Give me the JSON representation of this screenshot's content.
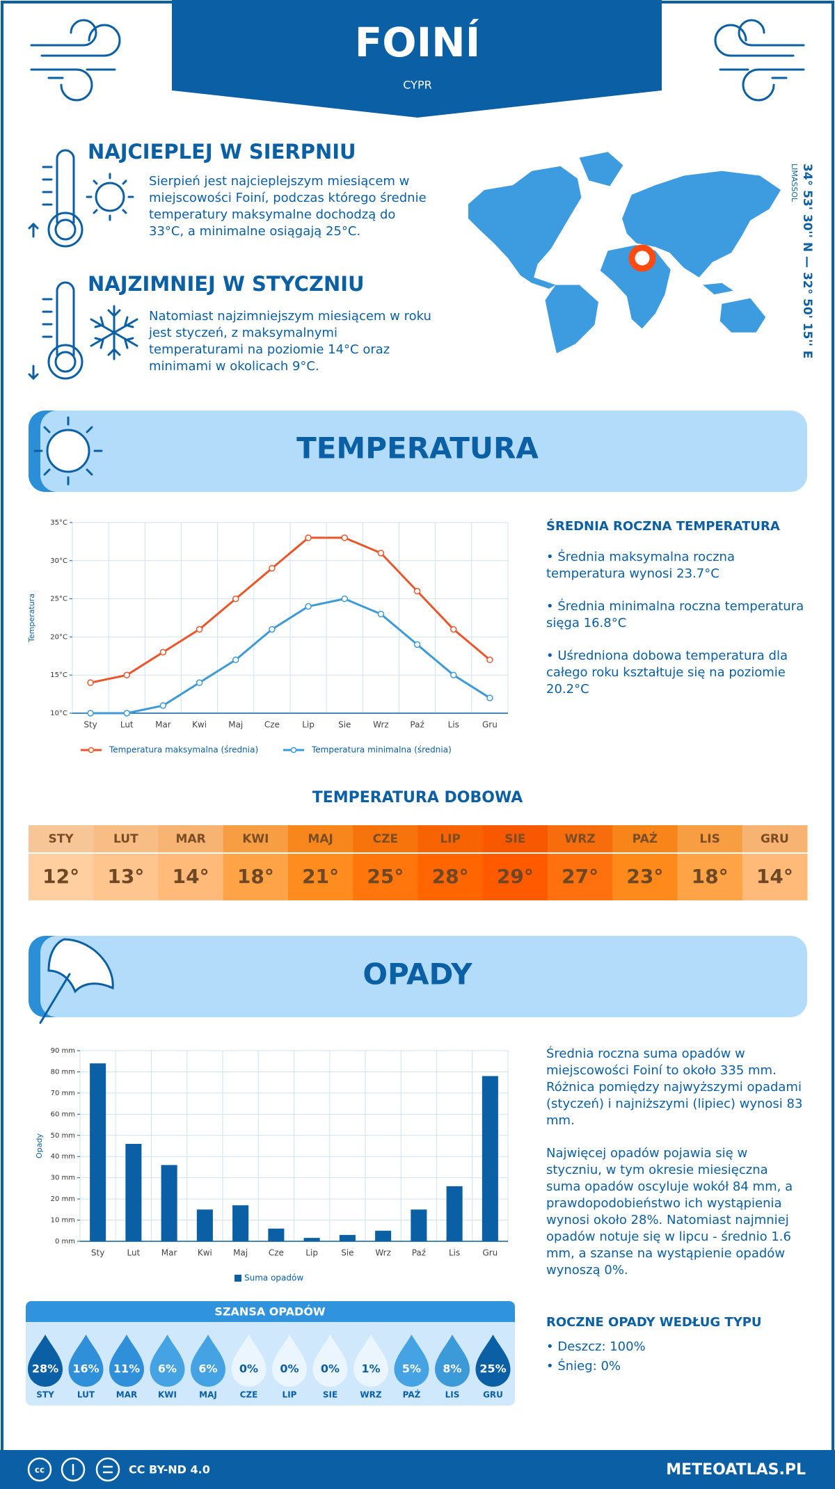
{
  "header": {
    "title": "FOINÍ",
    "subtitle": "CYPR"
  },
  "location": {
    "coordinates": "34° 53' 30'' N — 32° 50' 15'' E",
    "city": "LIMASSOL"
  },
  "highlights": [
    {
      "title": "NAJCIEPLEJ W SIERPNIU",
      "text": "Sierpień jest najcieplejszym miesiącem w miejscowości Foiní, podczas którego średnie temperatury maksymalne dochodzą do 33°C, a minimalne osiągają 25°C."
    },
    {
      "title": "NAJZIMNIEJ W STYCZNIU",
      "text": "Natomiast najzimniejszym miesiącem w roku jest styczeń, z maksymalnymi temperaturami na poziomie 14°C oraz minimami w okolicach 9°C."
    }
  ],
  "temperature_section": {
    "title": "TEMPERATURA",
    "summary_title": "ŚREDNIA ROCZNA TEMPERATURA",
    "bullets": [
      "• Średnia maksymalna roczna temperatura wynosi 23.7°C",
      "• Średnia minimalna roczna temperatura sięga 16.8°C",
      "• Uśredniona dobowa temperatura dla całego roku kształtuje się na poziomie 20.2°C"
    ]
  },
  "daily_temperature": {
    "title": "TEMPERATURA DOBOWA",
    "months": [
      "STY",
      "LUT",
      "MAR",
      "KWI",
      "MAJ",
      "CZE",
      "LIP",
      "SIE",
      "WRZ",
      "PAŹ",
      "LIS",
      "GRU"
    ],
    "values": [
      "12°",
      "13°",
      "14°",
      "18°",
      "21°",
      "25°",
      "28°",
      "29°",
      "27°",
      "23°",
      "18°",
      "14°"
    ],
    "colors": [
      "#ffcfa0",
      "#ffc58e",
      "#ffba7a",
      "#ffa347",
      "#ff8c1f",
      "#ff760c",
      "#ff6500",
      "#ff5a00",
      "#ff700e",
      "#ff8a1c",
      "#ffa347",
      "#ffba7a"
    ]
  },
  "precipitation_section": {
    "title": "OPADY",
    "paragraphs": [
      "Średnia roczna suma opadów w miejscowości Foiní to około 335 mm. Różnica pomiędzy najwyższymi opadami (styczeń) i najniższymi (lipiec) wynosi 83 mm.",
      "Najwięcej opadów pojawia się w styczniu, w tym okresie miesięczna suma opadów oscyluje wokół 84 mm, a prawdopodobieństwo ich wystąpienia wynosi około 28%. Natomiast najmniej opadów notuje się w lipcu - średnio 1.6 mm, a szanse na wystąpienie opadów wynoszą 0%."
    ],
    "type_title": "ROCZNE OPADY WEDŁUG TYPU",
    "types": [
      "• Deszcz: 100%",
      "• Śnieg: 0%"
    ]
  },
  "rain_chance": {
    "title": "SZANSA OPADÓW",
    "months": [
      "STY",
      "LUT",
      "MAR",
      "KWI",
      "MAJ",
      "CZE",
      "LIP",
      "SIE",
      "WRZ",
      "PAŹ",
      "LIS",
      "GRU"
    ],
    "values": [
      "28%",
      "16%",
      "11%",
      "6%",
      "6%",
      "0%",
      "0%",
      "0%",
      "1%",
      "5%",
      "8%",
      "25%"
    ],
    "colors": [
      "#0b5fa5",
      "#2f8fd8",
      "#2f8fd8",
      "#45a3e4",
      "#45a3e4",
      "#eaf5fe",
      "#eaf5fe",
      "#eaf5fe",
      "#eaf5fe",
      "#45a3e4",
      "#3d9ad8",
      "#0b5fa5"
    ]
  },
  "footer": {
    "license": "CC BY-ND 4.0",
    "site": "METEOATLAS.PL"
  },
  "chart_data": [
    {
      "type": "line",
      "y_label": "Temperatura",
      "categories": [
        "Sty",
        "Lut",
        "Mar",
        "Kwi",
        "Maj",
        "Cze",
        "Lip",
        "Sie",
        "Wrz",
        "Paź",
        "Lis",
        "Gru"
      ],
      "series": [
        {
          "name": "Temperatura maksymalna (średnia)",
          "color": "#e8562a",
          "values": [
            14,
            15,
            18,
            21,
            25,
            29,
            33,
            33,
            31,
            26,
            21,
            17
          ]
        },
        {
          "name": "Temperatura minimalna (średnia)",
          "color": "#3d9ad8",
          "values": [
            10,
            10,
            11,
            14,
            17,
            21,
            24,
            25,
            23,
            19,
            15,
            12
          ]
        }
      ],
      "ylim": [
        10,
        35
      ],
      "yticks": [
        {
          "value": 10,
          "label": "10°C"
        },
        {
          "value": 15,
          "label": "15°C"
        },
        {
          "value": 20,
          "label": "20°C"
        },
        {
          "value": 25,
          "label": "25°C"
        },
        {
          "value": 30,
          "label": "30°C"
        },
        {
          "value": 35,
          "label": "35°C"
        }
      ],
      "grid": true
    },
    {
      "type": "bar",
      "y_label": "Opady",
      "categories": [
        "Sty",
        "Lut",
        "Mar",
        "Kwi",
        "Maj",
        "Cze",
        "Lip",
        "Sie",
        "Wrz",
        "Paź",
        "Lis",
        "Gru"
      ],
      "series": [
        {
          "name": "Suma opadów",
          "color": "#0b5fa5",
          "values": [
            84,
            46,
            36,
            15,
            17,
            6,
            1.6,
            3,
            5,
            15,
            26,
            78
          ]
        }
      ],
      "ylim": [
        0,
        90
      ],
      "yticks": [
        {
          "value": 0,
          "label": "0 mm"
        },
        {
          "value": 10,
          "label": "10 mm"
        },
        {
          "value": 20,
          "label": "20 mm"
        },
        {
          "value": 30,
          "label": "30 mm"
        },
        {
          "value": 40,
          "label": "40 mm"
        },
        {
          "value": 50,
          "label": "50 mm"
        },
        {
          "value": 60,
          "label": "60 mm"
        },
        {
          "value": 70,
          "label": "70 mm"
        },
        {
          "value": 80,
          "label": "80 mm"
        },
        {
          "value": 90,
          "label": "90 mm"
        }
      ],
      "grid": true
    }
  ]
}
